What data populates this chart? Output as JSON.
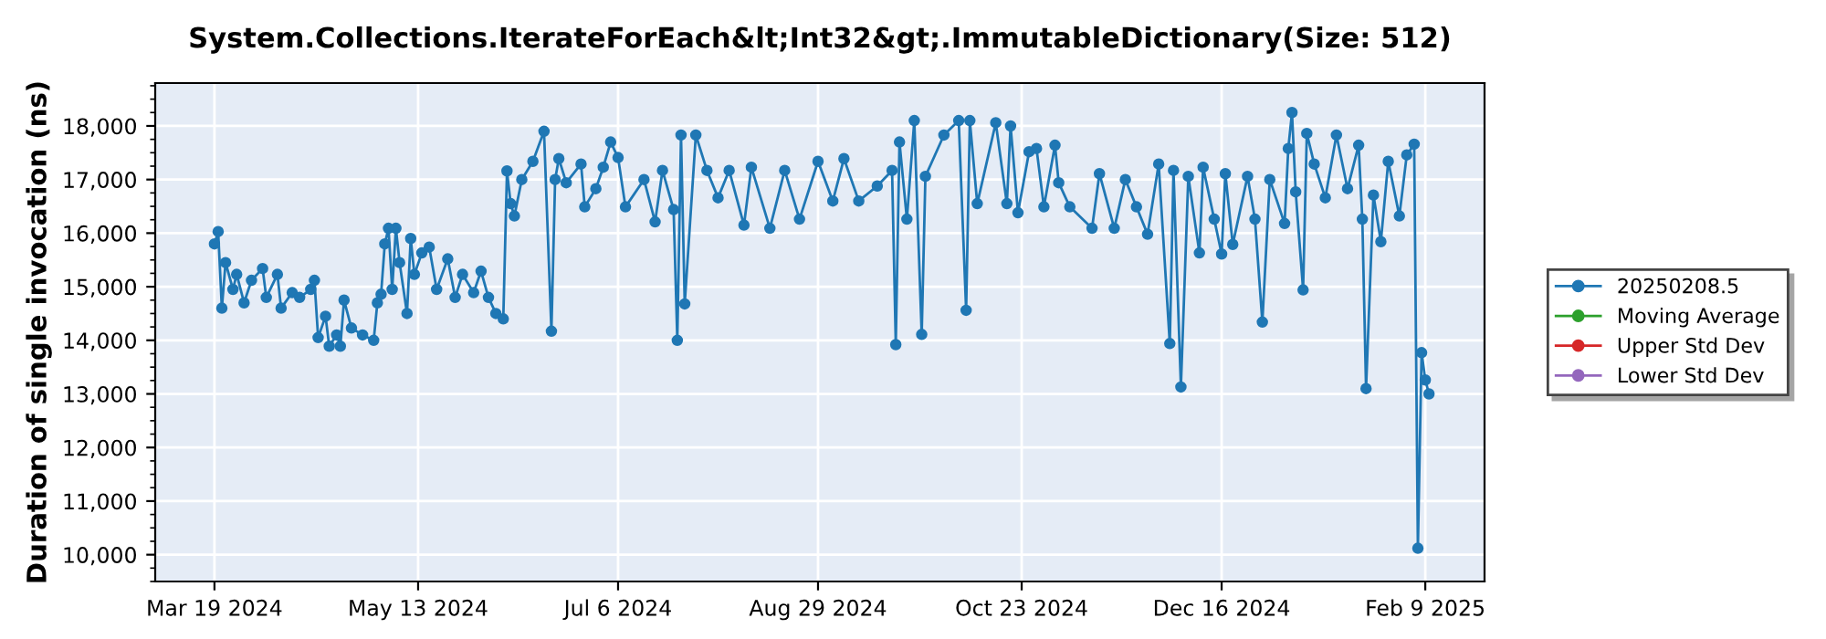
{
  "chart_data": {
    "type": "line",
    "title": "System.Collections.IterateForEach&lt;Int32&gt;.ImmutableDictionary(Size: 512)",
    "ylabel": "Duration of single invocation (ns)",
    "x": [
      "2024-03-19",
      "2024-03-20",
      "2024-03-21",
      "2024-03-22",
      "2024-03-24",
      "2024-03-25",
      "2024-03-27",
      "2024-03-29",
      "2024-04-01",
      "2024-04-02",
      "2024-04-05",
      "2024-04-06",
      "2024-04-09",
      "2024-04-11",
      "2024-04-14",
      "2024-04-15",
      "2024-04-16",
      "2024-04-18",
      "2024-04-19",
      "2024-04-21",
      "2024-04-22",
      "2024-04-23",
      "2024-04-25",
      "2024-04-28",
      "2024-05-01",
      "2024-05-02",
      "2024-05-03",
      "2024-05-04",
      "2024-05-05",
      "2024-05-06",
      "2024-05-07",
      "2024-05-08",
      "2024-05-10",
      "2024-05-11",
      "2024-05-12",
      "2024-05-14",
      "2024-05-16",
      "2024-05-18",
      "2024-05-21",
      "2024-05-23",
      "2024-05-25",
      "2024-05-28",
      "2024-05-30",
      "2024-06-01",
      "2024-06-03",
      "2024-06-05",
      "2024-06-06",
      "2024-06-07",
      "2024-06-08",
      "2024-06-10",
      "2024-06-13",
      "2024-06-16",
      "2024-06-18",
      "2024-06-19",
      "2024-06-20",
      "2024-06-22",
      "2024-06-26",
      "2024-06-27",
      "2024-06-30",
      "2024-07-02",
      "2024-07-04",
      "2024-07-06",
      "2024-07-08",
      "2024-07-13",
      "2024-07-16",
      "2024-07-18",
      "2024-07-21",
      "2024-07-22",
      "2024-07-23",
      "2024-07-24",
      "2024-07-27",
      "2024-07-30",
      "2024-08-02",
      "2024-08-05",
      "2024-08-09",
      "2024-08-11",
      "2024-08-16",
      "2024-08-20",
      "2024-08-24",
      "2024-08-29",
      "2024-09-02",
      "2024-09-05",
      "2024-09-09",
      "2024-09-14",
      "2024-09-18",
      "2024-09-19",
      "2024-09-20",
      "2024-09-22",
      "2024-09-24",
      "2024-09-26",
      "2024-09-27",
      "2024-10-02",
      "2024-10-06",
      "2024-10-08",
      "2024-10-09",
      "2024-10-11",
      "2024-10-16",
      "2024-10-19",
      "2024-10-20",
      "2024-10-22",
      "2024-10-25",
      "2024-10-27",
      "2024-10-29",
      "2024-11-01",
      "2024-11-02",
      "2024-11-05",
      "2024-11-11",
      "2024-11-13",
      "2024-11-17",
      "2024-11-20",
      "2024-11-23",
      "2024-11-26",
      "2024-11-29",
      "2024-12-02",
      "2024-12-03",
      "2024-12-05",
      "2024-12-07",
      "2024-12-10",
      "2024-12-11",
      "2024-12-14",
      "2024-12-16",
      "2024-12-17",
      "2024-12-19",
      "2024-12-23",
      "2024-12-25",
      "2024-12-27",
      "2024-12-29",
      "2025-01-02",
      "2025-01-03",
      "2025-01-04",
      "2025-01-05",
      "2025-01-07",
      "2025-01-08",
      "2025-01-10",
      "2025-01-13",
      "2025-01-16",
      "2025-01-19",
      "2025-01-22",
      "2025-01-23",
      "2025-01-24",
      "2025-01-26",
      "2025-01-28",
      "2025-01-30",
      "2025-02-02",
      "2025-02-04",
      "2025-02-06",
      "2025-02-07",
      "2025-02-08",
      "2025-02-09",
      "2025-02-10"
    ],
    "series": [
      {
        "name": "20250208.5",
        "color": "#1f77b4",
        "values": [
          15800,
          16030,
          14600,
          15450,
          14950,
          15230,
          14700,
          15120,
          15340,
          14800,
          15230,
          14600,
          14890,
          14800,
          14950,
          15120,
          14050,
          14450,
          13890,
          14100,
          13890,
          14750,
          14230,
          14100,
          14000,
          14700,
          14860,
          15800,
          16090,
          14950,
          16090,
          15450,
          14500,
          15900,
          15230,
          15630,
          15740,
          14950,
          15520,
          14800,
          15230,
          14890,
          15290,
          14800,
          14500,
          14400,
          17160,
          16550,
          16320,
          17000,
          17340,
          17900,
          14170,
          17000,
          17390,
          16940,
          17290,
          16490,
          16830,
          17230,
          17700,
          17410,
          16490,
          17000,
          16210,
          17170,
          16440,
          14000,
          17830,
          14680,
          17830,
          17170,
          16660,
          17170,
          16150,
          17230,
          16090,
          17170,
          16260,
          17340,
          16600,
          17390,
          16600,
          16880,
          17170,
          13920,
          17700,
          16260,
          18100,
          14110,
          17060,
          17830,
          18100,
          14560,
          18100,
          16550,
          18060,
          16550,
          18000,
          16380,
          17520,
          17580,
          16490,
          17640,
          16940,
          16490,
          16090,
          17110,
          16090,
          17000,
          16490,
          15980,
          17290,
          13940,
          17170,
          13130,
          17060,
          15630,
          17230,
          16260,
          15610,
          17110,
          15790,
          17060,
          16260,
          14340,
          17000,
          16180,
          17580,
          18250,
          16770,
          14940,
          17860,
          17290,
          16660,
          17830,
          16830,
          17640,
          16260,
          13100,
          16710,
          15840,
          17340,
          16320,
          17460,
          17660,
          10120,
          13770,
          13260,
          13000
        ]
      },
      {
        "name": "Moving Average",
        "color": "#2ca02c",
        "values": [
          null,
          null,
          null,
          null,
          null,
          null,
          null,
          null,
          null,
          null,
          null,
          null,
          null,
          null,
          null,
          null,
          null,
          null,
          null,
          null,
          null,
          null,
          null,
          null,
          null,
          null,
          null,
          null,
          null,
          null,
          null,
          null,
          null,
          null,
          null,
          null,
          null,
          null,
          null,
          null,
          null,
          null,
          null,
          null,
          null,
          null,
          null,
          null,
          null,
          null,
          null,
          null,
          null,
          null,
          null,
          null,
          null,
          null,
          null,
          null,
          null,
          null,
          null,
          null,
          null,
          null,
          null,
          null,
          null,
          null,
          null,
          null,
          null,
          null,
          null,
          null,
          null,
          null,
          null,
          null,
          null,
          null,
          null,
          null,
          null,
          null,
          null,
          null,
          null,
          null,
          null,
          null,
          null,
          null,
          null,
          null,
          null,
          null,
          null,
          null,
          null,
          null,
          null,
          null,
          null,
          null,
          null,
          null,
          null,
          null,
          null,
          null,
          null,
          null,
          null,
          null,
          null,
          null,
          null,
          null,
          null,
          null,
          null,
          null,
          null,
          null,
          null,
          null,
          null,
          null,
          null,
          null,
          null,
          null,
          null,
          null,
          null,
          null,
          null,
          null,
          null,
          null,
          null,
          null,
          null,
          null,
          null,
          null,
          null,
          null
        ]
      },
      {
        "name": "Upper Std Dev",
        "color": "#d62728",
        "values": [
          null,
          null,
          null,
          null,
          null,
          null,
          null,
          null,
          null,
          null,
          null,
          null,
          null,
          null,
          null,
          null,
          null,
          null,
          null,
          null,
          null,
          null,
          null,
          null,
          null,
          null,
          null,
          null,
          null,
          null,
          null,
          null,
          null,
          null,
          null,
          null,
          null,
          null,
          null,
          null,
          null,
          null,
          null,
          null,
          null,
          null,
          null,
          null,
          null,
          null,
          null,
          null,
          null,
          null,
          null,
          null,
          null,
          null,
          null,
          null,
          null,
          null,
          null,
          null,
          null,
          null,
          null,
          null,
          null,
          null,
          null,
          null,
          null,
          null,
          null,
          null,
          null,
          null,
          null,
          null,
          null,
          null,
          null,
          null,
          null,
          null,
          null,
          null,
          null,
          null,
          null,
          null,
          null,
          null,
          null,
          null,
          null,
          null,
          null,
          null,
          null,
          null,
          null,
          null,
          null,
          null,
          null,
          null,
          null,
          null,
          null,
          null,
          null,
          null,
          null,
          null,
          null,
          null,
          null,
          null,
          null,
          null,
          null,
          null,
          null,
          null,
          null,
          null,
          null,
          null,
          null,
          null,
          null,
          null,
          null,
          null,
          null,
          null,
          null,
          null,
          null,
          null,
          null,
          null,
          null,
          null,
          null,
          null,
          null,
          null
        ]
      },
      {
        "name": "Lower Std Dev",
        "color": "#9467bd",
        "values": [
          null,
          null,
          null,
          null,
          null,
          null,
          null,
          null,
          null,
          null,
          null,
          null,
          null,
          null,
          null,
          null,
          null,
          null,
          null,
          null,
          null,
          null,
          null,
          null,
          null,
          null,
          null,
          null,
          null,
          null,
          null,
          null,
          null,
          null,
          null,
          null,
          null,
          null,
          null,
          null,
          null,
          null,
          null,
          null,
          null,
          null,
          null,
          null,
          null,
          null,
          null,
          null,
          null,
          null,
          null,
          null,
          null,
          null,
          null,
          null,
          null,
          null,
          null,
          null,
          null,
          null,
          null,
          null,
          null,
          null,
          null,
          null,
          null,
          null,
          null,
          null,
          null,
          null,
          null,
          null,
          null,
          null,
          null,
          null,
          null,
          null,
          null,
          null,
          null,
          null,
          null,
          null,
          null,
          null,
          null,
          null,
          null,
          null,
          null,
          null,
          null,
          null,
          null,
          null,
          null,
          null,
          null,
          null,
          null,
          null,
          null,
          null,
          null,
          null,
          null,
          null,
          null,
          null,
          null,
          null,
          null,
          null,
          null,
          null,
          null,
          null,
          null,
          null,
          null,
          null,
          null,
          null,
          null,
          null,
          null,
          null,
          null,
          null,
          null,
          null,
          null,
          null,
          null,
          null,
          null,
          null,
          null,
          null,
          null,
          null
        ]
      }
    ],
    "xlim": [
      "2024-03-03",
      "2025-02-25"
    ],
    "xticks": [
      {
        "value": "2024-03-19",
        "label": "Mar 19 2024"
      },
      {
        "value": "2024-05-13",
        "label": "May 13 2024"
      },
      {
        "value": "2024-07-06",
        "label": "Jul 6 2024"
      },
      {
        "value": "2024-08-29",
        "label": "Aug 29 2024"
      },
      {
        "value": "2024-10-23",
        "label": "Oct 23 2024"
      },
      {
        "value": "2024-12-16",
        "label": "Dec 16 2024"
      },
      {
        "value": "2025-02-09",
        "label": "Feb 9 2025"
      }
    ],
    "ylim": [
      9500,
      18800
    ],
    "yticks": [
      {
        "value": 10000,
        "label": "10,000"
      },
      {
        "value": 11000,
        "label": "11,000"
      },
      {
        "value": 12000,
        "label": "12,000"
      },
      {
        "value": 13000,
        "label": "13,000"
      },
      {
        "value": 14000,
        "label": "14,000"
      },
      {
        "value": 15000,
        "label": "15,000"
      },
      {
        "value": 16000,
        "label": "16,000"
      },
      {
        "value": 17000,
        "label": "17,000"
      },
      {
        "value": 18000,
        "label": "18,000"
      }
    ],
    "grid": true,
    "legend": "right",
    "marker": "circle",
    "line_style": "solid"
  }
}
